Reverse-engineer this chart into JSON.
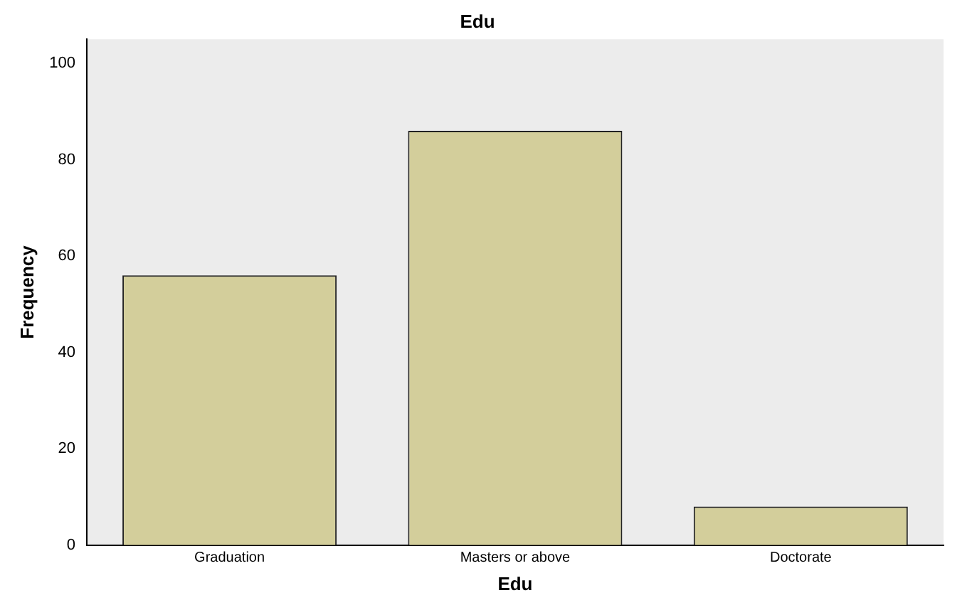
{
  "chart_data": {
    "type": "bar",
    "title": "Edu",
    "xlabel": "Edu",
    "ylabel": "Frequency",
    "categories": [
      "Graduation",
      "Masters or above",
      "Doctorate"
    ],
    "values": [
      56,
      86,
      8
    ],
    "color": "#d3ce9b",
    "ylim": [
      0,
      105
    ],
    "yticks": [
      0,
      20,
      40,
      60,
      80,
      100
    ],
    "grid": false
  }
}
